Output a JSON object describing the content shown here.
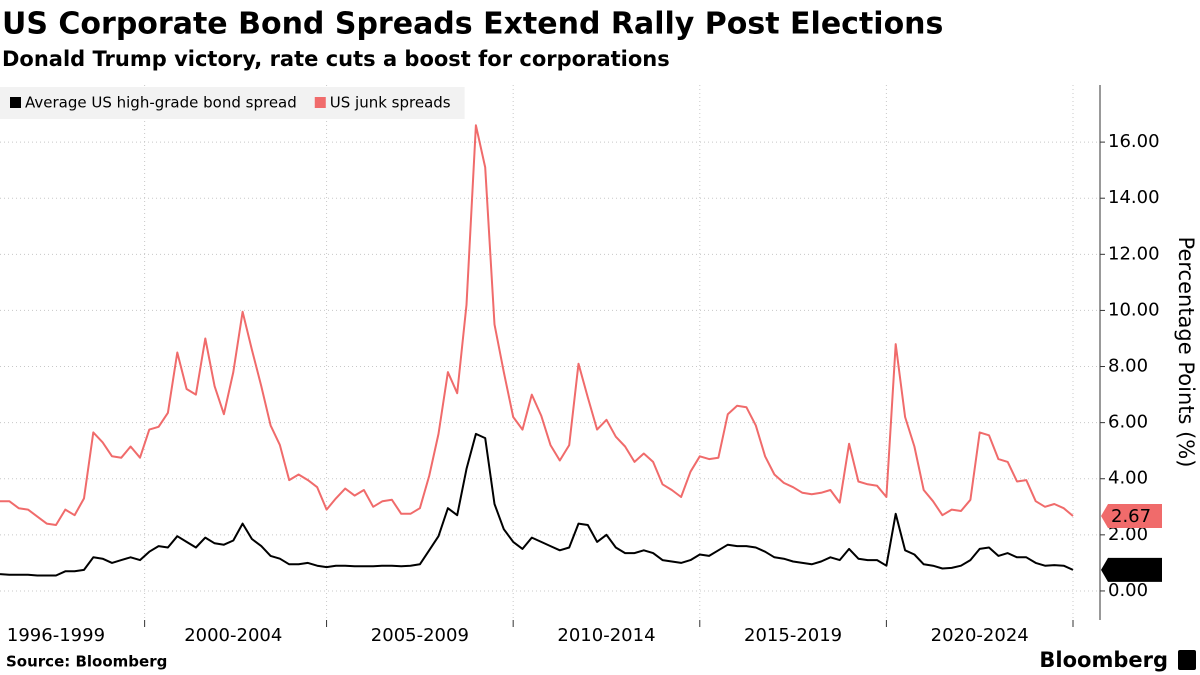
{
  "chart_data": {
    "type": "line",
    "title": "US Corporate Bond Spreads Extend Rally Post Elections",
    "subtitle": "Donald Trump victory, rate cuts a boost for corporations",
    "source": "Source: Bloomberg",
    "brand": "Bloomberg",
    "y_label": "Percentage Points (%)",
    "legend": "upper left",
    "grid": true,
    "ylim": [
      -1,
      18
    ],
    "yticks": [
      {
        "value": 0,
        "label": "0.00"
      },
      {
        "value": 2,
        "label": "2.00"
      },
      {
        "value": 4,
        "label": "4.00"
      },
      {
        "value": 6,
        "label": "6.00"
      },
      {
        "value": 8,
        "label": "8.00"
      },
      {
        "value": 10,
        "label": "10.00"
      },
      {
        "value": 12,
        "label": "12.00"
      },
      {
        "value": 14,
        "label": "14.00"
      },
      {
        "value": 16,
        "label": "16.00"
      }
    ],
    "categories": [
      null,
      null,
      null,
      null,
      null,
      null,
      "1996-1999",
      null,
      null,
      null,
      null,
      null,
      null,
      null,
      null,
      null,
      null,
      null,
      null,
      null,
      null,
      null,
      null,
      null,
      null,
      "2000-2004",
      null,
      null,
      null,
      null,
      null,
      null,
      null,
      null,
      null,
      null,
      null,
      null,
      null,
      null,
      null,
      null,
      null,
      null,
      null,
      "2005-2009",
      null,
      null,
      null,
      null,
      null,
      null,
      null,
      null,
      null,
      null,
      null,
      null,
      null,
      null,
      null,
      null,
      null,
      null,
      null,
      "2010-2014",
      null,
      null,
      null,
      null,
      null,
      null,
      null,
      null,
      null,
      null,
      null,
      null,
      null,
      null,
      null,
      null,
      null,
      null,
      null,
      "2015-2019",
      null,
      null,
      null,
      null,
      null,
      null,
      null,
      null,
      null,
      null,
      null,
      null,
      null,
      null,
      null,
      null,
      null,
      null,
      null,
      "2020-2024",
      null,
      null,
      null,
      null,
      null,
      null,
      null,
      null,
      null,
      null
    ],
    "series": [
      {
        "name": "Average US high-grade bond spread",
        "color": "#000000",
        "values": [
          0.6,
          0.58,
          0.58,
          0.58,
          0.55,
          0.55,
          0.55,
          0.7,
          0.7,
          0.75,
          1.2,
          1.15,
          1.0,
          1.1,
          1.2,
          1.1,
          1.4,
          1.6,
          1.55,
          1.95,
          1.75,
          1.55,
          1.9,
          1.7,
          1.65,
          1.8,
          2.4,
          1.85,
          1.6,
          1.25,
          1.15,
          0.95,
          0.95,
          1.0,
          0.9,
          0.85,
          0.9,
          0.9,
          0.88,
          0.88,
          0.88,
          0.9,
          0.9,
          0.88,
          0.9,
          0.95,
          1.45,
          1.95,
          2.95,
          2.7,
          4.35,
          5.6,
          5.45,
          3.1,
          2.2,
          1.75,
          1.5,
          1.9,
          1.75,
          1.6,
          1.45,
          1.55,
          2.4,
          2.35,
          1.75,
          2.0,
          1.55,
          1.35,
          1.35,
          1.45,
          1.35,
          1.1,
          1.05,
          1.0,
          1.1,
          1.3,
          1.25,
          1.45,
          1.65,
          1.6,
          1.6,
          1.55,
          1.4,
          1.2,
          1.15,
          1.05,
          1.0,
          0.95,
          1.05,
          1.2,
          1.1,
          1.5,
          1.15,
          1.1,
          1.1,
          0.9,
          2.75,
          1.45,
          1.3,
          0.95,
          0.9,
          0.8,
          0.82,
          0.9,
          1.1,
          1.5,
          1.55,
          1.25,
          1.35,
          1.2,
          1.2,
          1.0,
          0.9,
          0.92,
          0.9,
          0.75
        ],
        "label_text_color": "#ffffff"
      },
      {
        "name": "US junk spreads",
        "color": "#f06b6b",
        "values": [
          3.2,
          3.2,
          2.95,
          2.9,
          2.65,
          2.4,
          2.35,
          2.9,
          2.7,
          3.3,
          5.65,
          5.3,
          4.8,
          4.75,
          5.15,
          4.75,
          5.75,
          5.85,
          6.35,
          8.5,
          7.2,
          7.0,
          9.0,
          7.3,
          6.3,
          7.8,
          9.95,
          8.6,
          7.3,
          5.9,
          5.2,
          3.95,
          4.15,
          3.95,
          3.7,
          2.9,
          3.3,
          3.65,
          3.4,
          3.6,
          3.0,
          3.2,
          3.25,
          2.75,
          2.75,
          2.95,
          4.1,
          5.6,
          7.8,
          7.05,
          10.2,
          16.6,
          15.1,
          9.5,
          7.8,
          6.2,
          5.75,
          7.0,
          6.25,
          5.2,
          4.65,
          5.2,
          8.1,
          6.9,
          5.75,
          6.1,
          5.5,
          5.15,
          4.6,
          4.9,
          4.6,
          3.8,
          3.6,
          3.35,
          4.25,
          4.8,
          4.7,
          4.75,
          6.3,
          6.6,
          6.55,
          5.9,
          4.8,
          4.15,
          3.85,
          3.7,
          3.5,
          3.45,
          3.5,
          3.6,
          3.15,
          5.25,
          3.9,
          3.8,
          3.75,
          3.35,
          8.8,
          6.2,
          5.15,
          3.6,
          3.2,
          2.7,
          2.9,
          2.85,
          3.25,
          5.65,
          5.55,
          4.7,
          4.6,
          3.9,
          3.95,
          3.2,
          3.0,
          3.1,
          2.95,
          2.67
        ],
        "label_text_color": "#000000"
      }
    ]
  }
}
